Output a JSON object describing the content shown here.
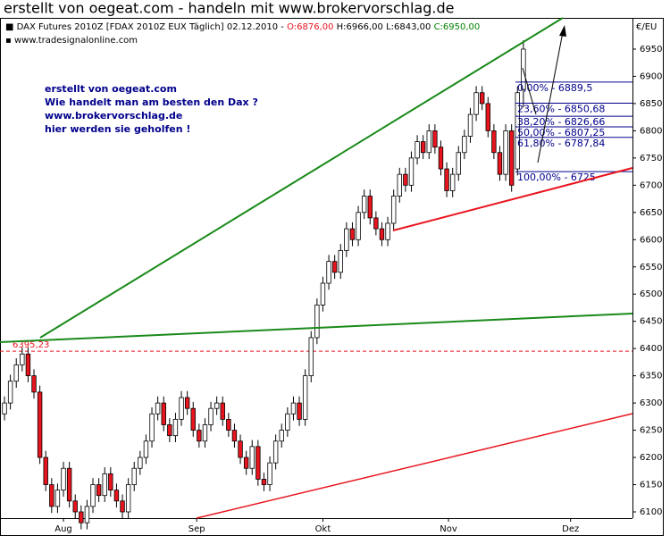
{
  "chart_data": {
    "type": "candlestick",
    "title": "erstellt von oegeat.com - handeln mit www.brokervorschlag.de",
    "header": {
      "instrument": "DAX Futures 2010Z [FDAX 2010Z EUX  Täglich] 02.12.2010 - ",
      "open": "O:6876,00",
      "high_low": " H:6966,00 L:6843,00 ",
      "close": "C:6950,00"
    },
    "subtitle": "www.tradesignalonline.com",
    "y_unit": "€/EU",
    "annotation": [
      "erstellt von oegeat.com",
      "Wie handelt man am besten den Dax ?",
      "www.brokervorschlag.de",
      "hier werden sie geholfen !"
    ],
    "open": [
      6280,
      6300,
      6340,
      6370,
      6390,
      6350,
      6320,
      6200,
      6150,
      6110,
      6140,
      6180,
      6120,
      6100,
      6080,
      6110,
      6150,
      6130,
      6170,
      6140,
      6120,
      6100,
      6150,
      6180,
      6200,
      6230,
      6280,
      6300,
      6260,
      6240,
      6270,
      6310,
      6290,
      6250,
      6230,
      6260,
      6290,
      6300,
      6270,
      6250,
      6230,
      6200,
      6180,
      6220,
      6160,
      6150,
      6190,
      6230,
      6250,
      6280,
      6300,
      6270,
      6350,
      6420,
      6480,
      6520,
      6560,
      6540,
      6580,
      6620,
      6600,
      6650,
      6680,
      6640,
      6620,
      6600,
      6630,
      6680,
      6720,
      6700,
      6750,
      6780,
      6760,
      6800,
      6770,
      6730,
      6690,
      6720,
      6760,
      6790,
      6830,
      6870,
      6850,
      6800,
      6760,
      6720,
      6800,
      6730,
      6876
    ],
    "high": [
      6312,
      6352,
      6382,
      6402,
      6402,
      6362,
      6332,
      6212,
      6162,
      6152,
      6192,
      6192,
      6132,
      6112,
      6122,
      6162,
      6162,
      6182,
      6182,
      6152,
      6132,
      6162,
      6192,
      6212,
      6242,
      6292,
      6312,
      6312,
      6272,
      6282,
      6322,
      6322,
      6302,
      6262,
      6272,
      6302,
      6312,
      6312,
      6282,
      6262,
      6242,
      6212,
      6232,
      6232,
      6172,
      6202,
      6242,
      6262,
      6292,
      6312,
      6312,
      6362,
      6432,
      6492,
      6532,
      6572,
      6572,
      6592,
      6632,
      6632,
      6662,
      6692,
      6692,
      6652,
      6632,
      6642,
      6692,
      6732,
      6732,
      6762,
      6792,
      6792,
      6812,
      6812,
      6782,
      6742,
      6732,
      6772,
      6802,
      6842,
      6882,
      6882,
      6862,
      6812,
      6772,
      6812,
      6812,
      6882,
      6966
    ],
    "low": [
      6268,
      6288,
      6328,
      6358,
      6338,
      6308,
      6188,
      6138,
      6098,
      6098,
      6128,
      6108,
      6088,
      6068,
      6068,
      6098,
      6118,
      6118,
      6128,
      6108,
      6088,
      6088,
      6138,
      6168,
      6188,
      6218,
      6268,
      6248,
      6228,
      6228,
      6258,
      6278,
      6238,
      6218,
      6218,
      6248,
      6278,
      6258,
      6238,
      6218,
      6188,
      6168,
      6168,
      6148,
      6138,
      6138,
      6178,
      6218,
      6238,
      6268,
      6258,
      6258,
      6338,
      6408,
      6468,
      6508,
      6528,
      6528,
      6568,
      6588,
      6588,
      6638,
      6628,
      6608,
      6588,
      6588,
      6618,
      6668,
      6688,
      6688,
      6738,
      6748,
      6748,
      6758,
      6718,
      6678,
      6678,
      6708,
      6748,
      6778,
      6818,
      6838,
      6788,
      6748,
      6708,
      6708,
      6688,
      6718,
      6843
    ],
    "close": [
      6300,
      6340,
      6370,
      6390,
      6350,
      6320,
      6200,
      6150,
      6110,
      6140,
      6180,
      6120,
      6100,
      6080,
      6110,
      6150,
      6130,
      6170,
      6140,
      6120,
      6100,
      6150,
      6180,
      6200,
      6230,
      6280,
      6300,
      6260,
      6240,
      6270,
      6310,
      6290,
      6250,
      6230,
      6260,
      6290,
      6300,
      6270,
      6250,
      6230,
      6200,
      6180,
      6220,
      6160,
      6150,
      6190,
      6230,
      6250,
      6280,
      6300,
      6270,
      6350,
      6420,
      6480,
      6520,
      6560,
      6540,
      6580,
      6620,
      6600,
      6650,
      6680,
      6640,
      6620,
      6600,
      6630,
      6680,
      6720,
      6700,
      6750,
      6780,
      6760,
      6800,
      6770,
      6730,
      6690,
      6720,
      6760,
      6790,
      6830,
      6870,
      6850,
      6800,
      6760,
      6720,
      6800,
      6700,
      6870,
      6950
    ],
    "up_color": "#ffffff",
    "down_color": "#e8141e",
    "xlim": [
      -0.76,
      106.5
    ],
    "xticks": [
      {
        "value": 10,
        "label": "Aug"
      },
      {
        "value": 32.6,
        "label": "Sep"
      },
      {
        "value": 54,
        "label": "Okt"
      },
      {
        "value": 75.3,
        "label": "Nov"
      },
      {
        "value": 96,
        "label": "Dez"
      }
    ],
    "ylim": [
      6088.5,
      7007.4
    ],
    "yticks": [
      6100,
      6150,
      6200,
      6250,
      6300,
      6350,
      6400,
      6450,
      6500,
      6550,
      6600,
      6650,
      6700,
      6750,
      6800,
      6850,
      6900,
      6950
    ],
    "level": {
      "value": 6395.23,
      "label": "6395,23",
      "color": "#e8141e"
    },
    "fib_levels": [
      {
        "value": 6889.5,
        "label": "0,00% - 6889,5"
      },
      {
        "value": 6850.68,
        "label": "23,60% - 6850,68"
      },
      {
        "value": 6826.66,
        "label": "38,20% - 6826,66"
      },
      {
        "value": 6807.25,
        "label": "50,00% - 6807,25"
      },
      {
        "value": 6787.84,
        "label": "61,80% - 6787,84"
      },
      {
        "value": 6725,
        "label": "100,00% - 6725"
      }
    ],
    "fib_color": "#00008b"
  }
}
